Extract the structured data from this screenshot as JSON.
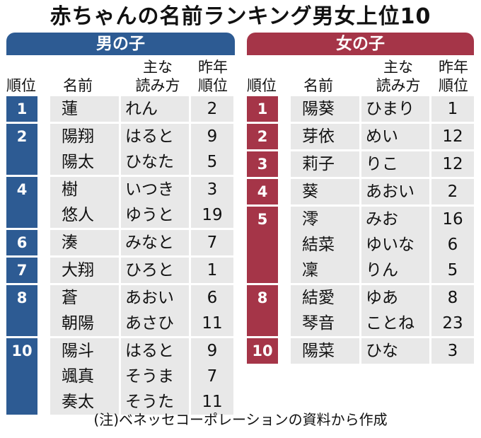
{
  "title": "赤ちゃんの名前ランキング男女上位10",
  "headers": {
    "rank": "順位",
    "name": "名前",
    "reading_line1": "主な",
    "reading_line2": "読み方",
    "prev_line1": "昨年",
    "prev_line2": "順位"
  },
  "boys": {
    "label": "男の子",
    "groups": [
      {
        "rank": "1",
        "entries": [
          {
            "name": "蓮",
            "reading": "れん",
            "prev": "2"
          }
        ]
      },
      {
        "rank": "2",
        "entries": [
          {
            "name": "陽翔",
            "reading": "はると",
            "prev": "9"
          },
          {
            "name": "陽太",
            "reading": "ひなた",
            "prev": "5"
          }
        ]
      },
      {
        "rank": "4",
        "entries": [
          {
            "name": "樹",
            "reading": "いつき",
            "prev": "3"
          },
          {
            "name": "悠人",
            "reading": "ゆうと",
            "prev": "19"
          }
        ]
      },
      {
        "rank": "6",
        "entries": [
          {
            "name": "湊",
            "reading": "みなと",
            "prev": "7"
          }
        ]
      },
      {
        "rank": "7",
        "entries": [
          {
            "name": "大翔",
            "reading": "ひろと",
            "prev": "1"
          }
        ]
      },
      {
        "rank": "8",
        "entries": [
          {
            "name": "蒼",
            "reading": "あおい",
            "prev": "6"
          },
          {
            "name": "朝陽",
            "reading": "あさひ",
            "prev": "11"
          }
        ]
      },
      {
        "rank": "10",
        "entries": [
          {
            "name": "陽斗",
            "reading": "はると",
            "prev": "9"
          },
          {
            "name": "颯真",
            "reading": "そうま",
            "prev": "7"
          },
          {
            "name": "奏太",
            "reading": "そうた",
            "prev": "11"
          }
        ]
      }
    ]
  },
  "girls": {
    "label": "女の子",
    "groups": [
      {
        "rank": "1",
        "entries": [
          {
            "name": "陽葵",
            "reading": "ひまり",
            "prev": "1"
          }
        ]
      },
      {
        "rank": "2",
        "entries": [
          {
            "name": "芽依",
            "reading": "めい",
            "prev": "12"
          }
        ]
      },
      {
        "rank": "3",
        "entries": [
          {
            "name": "莉子",
            "reading": "りこ",
            "prev": "12"
          }
        ]
      },
      {
        "rank": "4",
        "entries": [
          {
            "name": "葵",
            "reading": "あおい",
            "prev": "2"
          }
        ]
      },
      {
        "rank": "5",
        "entries": [
          {
            "name": "澪",
            "reading": "みお",
            "prev": "16"
          },
          {
            "name": "結菜",
            "reading": "ゆいな",
            "prev": "6"
          },
          {
            "name": "凜",
            "reading": "りん",
            "prev": "5"
          }
        ]
      },
      {
        "rank": "8",
        "entries": [
          {
            "name": "結愛",
            "reading": "ゆあ",
            "prev": "8"
          },
          {
            "name": "琴音",
            "reading": "ことね",
            "prev": "23"
          }
        ]
      },
      {
        "rank": "10",
        "entries": [
          {
            "name": "陽菜",
            "reading": "ひな",
            "prev": "3"
          }
        ]
      }
    ]
  },
  "note": "(注)ベネッセコーポレーションの資料から作成"
}
